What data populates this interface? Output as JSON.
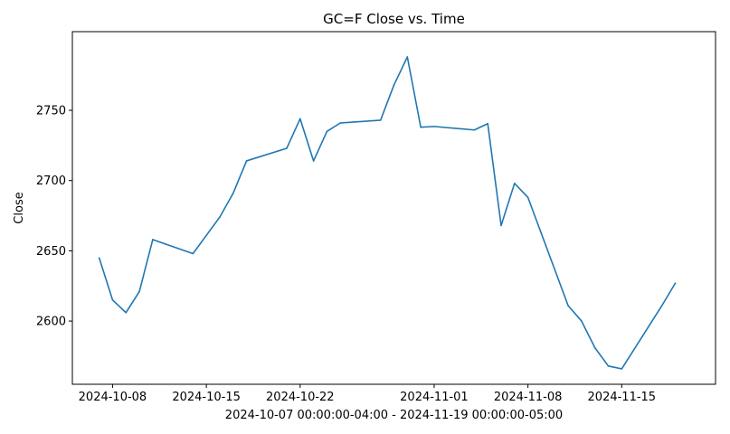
{
  "chart_data": {
    "type": "line",
    "title": "GC=F Close vs. Time",
    "xlabel": "2024-10-07 00:00:00-04:00 - 2024-11-19 00:00:00-05:00",
    "ylabel": "Close",
    "xlim": [
      "2024-10-05",
      "2024-11-22"
    ],
    "ylim": [
      2555,
      2806
    ],
    "grid": false,
    "x_ticks": [
      "2024-10-08",
      "2024-10-15",
      "2024-10-22",
      "2024-11-01",
      "2024-11-08",
      "2024-11-15"
    ],
    "y_ticks": [
      2600,
      2650,
      2700,
      2750
    ],
    "series": [
      {
        "color": "#1f77b4",
        "x": [
          "2024-10-07",
          "2024-10-08",
          "2024-10-09",
          "2024-10-10",
          "2024-10-11",
          "2024-10-14",
          "2024-10-15",
          "2024-10-16",
          "2024-10-17",
          "2024-10-18",
          "2024-10-21",
          "2024-10-22",
          "2024-10-23",
          "2024-10-24",
          "2024-10-25",
          "2024-10-28",
          "2024-10-29",
          "2024-10-30",
          "2024-10-31",
          "2024-11-01",
          "2024-11-04",
          "2024-11-05",
          "2024-11-06",
          "2024-11-07",
          "2024-11-08",
          "2024-11-11",
          "2024-11-12",
          "2024-11-13",
          "2024-11-14",
          "2024-11-15",
          "2024-11-18",
          "2024-11-19"
        ],
        "y": [
          2645,
          2615,
          2606,
          2621,
          2658,
          2648,
          2661,
          2674,
          2691,
          2714,
          2723,
          2744,
          2714,
          2735,
          2741,
          2743,
          2768,
          2788,
          2738,
          2738.5,
          2736,
          2740.5,
          2668,
          2698,
          2688,
          2611,
          2600,
          2581,
          2568,
          2566,
          2611,
          2627
        ]
      }
    ]
  }
}
